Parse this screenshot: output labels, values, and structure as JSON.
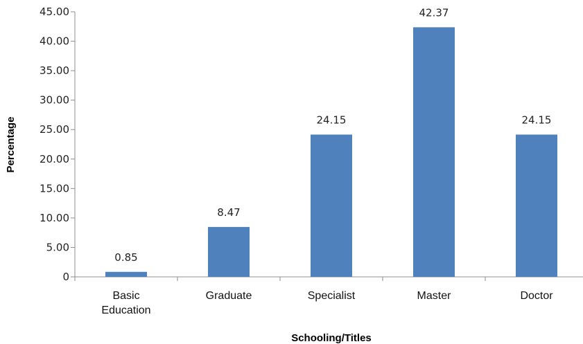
{
  "chart_data": {
    "type": "bar",
    "title": "",
    "xlabel": "Schooling/Titles",
    "ylabel": "Percentage",
    "categories": [
      [
        "Basic",
        "Education"
      ],
      [
        "Graduate"
      ],
      [
        "Specialist"
      ],
      [
        "Master"
      ],
      [
        "Doctor"
      ]
    ],
    "values": [
      0.85,
      8.47,
      24.15,
      42.37,
      24.15
    ],
    "data_labels": [
      "0.85",
      "8.47",
      "24.15",
      "42.37",
      "24.15"
    ],
    "ylim": [
      0,
      45
    ],
    "yticks": [
      0,
      5,
      10,
      15,
      20,
      25,
      30,
      35,
      40,
      45
    ],
    "ytick_labels": [
      "0",
      "5.00",
      "10.00",
      "15.00",
      "20.00",
      "25.00",
      "30.00",
      "35.00",
      "40.00",
      "45.00"
    ],
    "bar_color": "#4f81bd",
    "grid": false,
    "legend": "none"
  }
}
